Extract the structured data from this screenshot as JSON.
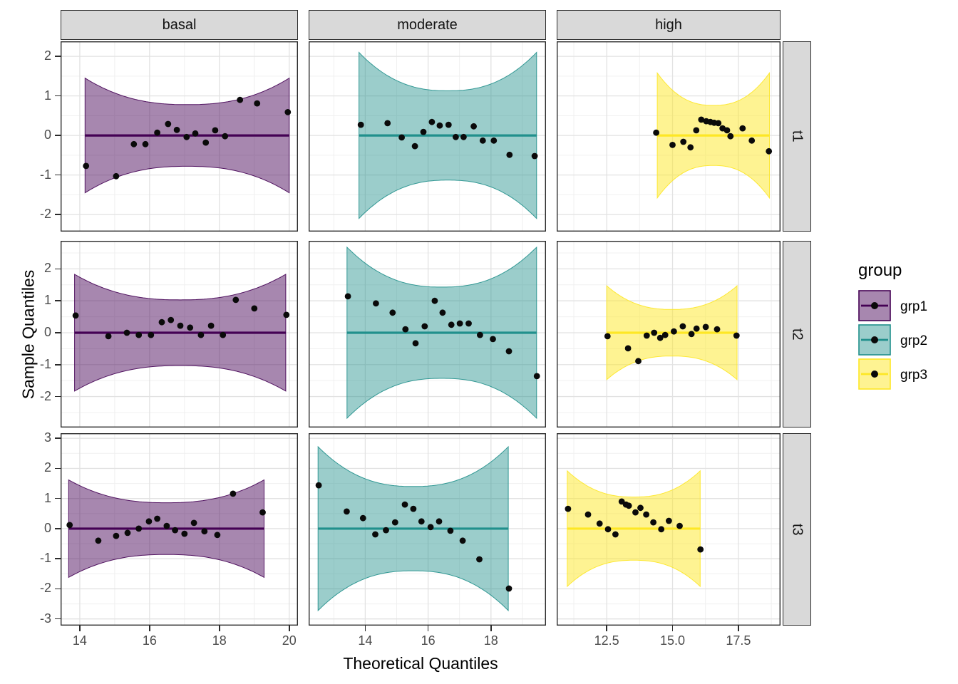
{
  "axis": {
    "x_title": "Theoretical Quantiles",
    "y_title": "Sample Quantiles"
  },
  "facets": {
    "col_labels": [
      "basal",
      "moderate",
      "high"
    ],
    "row_labels": [
      "t1",
      "t2",
      "t3"
    ]
  },
  "legend": {
    "title": "group",
    "entries": [
      {
        "label": "grp1",
        "color": "#440154",
        "fill_opacity": 0.47
      },
      {
        "label": "grp2",
        "color": "#21908C",
        "fill_opacity": 0.45
      },
      {
        "label": "grp3",
        "color": "#FDE725",
        "fill_opacity": 0.5
      }
    ]
  },
  "theme": {
    "strip_background": "#D9D9D9",
    "panel_border": "#2b2b2b",
    "grid_major": "#E2E2E2",
    "grid_minor": "#F0F0F0",
    "tick_label_color": "#4D4D4D",
    "point_color": "#0a0a0a",
    "background": "#ffffff"
  },
  "chart_data": {
    "type": "scatter",
    "subtype": "qq-plot-with-confidence-band",
    "title": "",
    "xlabel": "Theoretical Quantiles",
    "ylabel": "Sample Quantiles",
    "grid": true,
    "legend_position": "right",
    "x_scales": [
      {
        "facet": "basal",
        "domain": [
          13.45,
          20.25
        ],
        "ticks": [
          14,
          16,
          18,
          20
        ],
        "tick_labels": [
          "14",
          "16",
          "18",
          "20"
        ],
        "minor": [
          15,
          17,
          19
        ]
      },
      {
        "facet": "moderate",
        "domain": [
          12.2,
          19.75
        ],
        "ticks": [
          14,
          16,
          18
        ],
        "tick_labels": [
          "14",
          "16",
          "18"
        ],
        "minor": [
          13,
          15,
          17,
          19
        ]
      },
      {
        "facet": "high",
        "domain": [
          10.6,
          19.1
        ],
        "ticks": [
          12.5,
          15.0,
          17.5
        ],
        "tick_labels": [
          "12.5",
          "15.0",
          "17.5"
        ],
        "minor": [
          11.25,
          13.75,
          16.25,
          18.75
        ]
      }
    ],
    "y_scales": [
      {
        "facet": "t1",
        "domain": [
          -2.43,
          2.38
        ],
        "ticks": [
          -2,
          -1,
          0,
          1,
          2
        ],
        "tick_labels": [
          "-2",
          "-1",
          "0",
          "1",
          "2"
        ],
        "minor": [
          -1.5,
          -0.5,
          0.5,
          1.5
        ]
      },
      {
        "facet": "t2",
        "domain": [
          -2.97,
          2.88
        ],
        "ticks": [
          -2,
          -1,
          0,
          1,
          2
        ],
        "tick_labels": [
          "-2",
          "-1",
          "0",
          "1",
          "2"
        ],
        "minor": [
          -2.5,
          -1.5,
          -0.5,
          0.5,
          1.5,
          2.5
        ]
      },
      {
        "facet": "t3",
        "domain": [
          -3.22,
          3.17
        ],
        "ticks": [
          -3,
          -2,
          -1,
          0,
          1,
          2,
          3
        ],
        "tick_labels": [
          "-3",
          "-2",
          "-1",
          "0",
          "1",
          "2",
          "3"
        ],
        "minor": [
          -2.5,
          -1.5,
          -0.5,
          0.5,
          1.5,
          2.5
        ]
      }
    ],
    "panels": [
      {
        "row": "t1",
        "col": "basal",
        "group": "grp1",
        "ref_line_y": 0,
        "band": {
          "xmin": 14.15,
          "xmax": 20.0,
          "half_mid": 0.78,
          "half_end": 1.45
        },
        "points": [
          [
            14.18,
            -0.77
          ],
          [
            15.04,
            -1.03
          ],
          [
            15.55,
            -0.22
          ],
          [
            15.88,
            -0.22
          ],
          [
            16.22,
            0.07
          ],
          [
            16.53,
            0.29
          ],
          [
            16.78,
            0.14
          ],
          [
            17.06,
            -0.04
          ],
          [
            17.31,
            0.05
          ],
          [
            17.61,
            -0.18
          ],
          [
            17.88,
            0.13
          ],
          [
            18.16,
            -0.02
          ],
          [
            18.59,
            0.9
          ],
          [
            19.08,
            0.81
          ],
          [
            19.96,
            0.59
          ]
        ]
      },
      {
        "row": "t1",
        "col": "moderate",
        "group": "grp2",
        "ref_line_y": 0,
        "band": {
          "xmin": 13.8,
          "xmax": 19.45,
          "half_mid": 1.13,
          "half_end": 2.1
        },
        "points": [
          [
            13.86,
            0.27
          ],
          [
            14.71,
            0.31
          ],
          [
            15.16,
            -0.05
          ],
          [
            15.58,
            -0.27
          ],
          [
            15.85,
            0.09
          ],
          [
            16.12,
            0.34
          ],
          [
            16.37,
            0.25
          ],
          [
            16.65,
            0.27
          ],
          [
            16.88,
            -0.04
          ],
          [
            17.13,
            -0.04
          ],
          [
            17.45,
            0.23
          ],
          [
            17.74,
            -0.13
          ],
          [
            18.09,
            -0.13
          ],
          [
            18.59,
            -0.49
          ],
          [
            19.39,
            -0.52
          ]
        ]
      },
      {
        "row": "t1",
        "col": "high",
        "group": "grp3",
        "ref_line_y": 0,
        "band": {
          "xmin": 14.42,
          "xmax": 18.68,
          "half_mid": 0.76,
          "half_end": 1.58
        },
        "points": [
          [
            14.38,
            0.07
          ],
          [
            15.0,
            -0.24
          ],
          [
            15.41,
            -0.16
          ],
          [
            15.68,
            -0.3
          ],
          [
            15.9,
            0.13
          ],
          [
            16.09,
            0.4
          ],
          [
            16.28,
            0.36
          ],
          [
            16.44,
            0.34
          ],
          [
            16.58,
            0.32
          ],
          [
            16.74,
            0.31
          ],
          [
            16.9,
            0.18
          ],
          [
            17.07,
            0.13
          ],
          [
            17.2,
            -0.02
          ],
          [
            17.66,
            0.18
          ],
          [
            18.01,
            -0.13
          ],
          [
            18.66,
            -0.4
          ]
        ]
      },
      {
        "row": "t2",
        "col": "basal",
        "group": "grp1",
        "ref_line_y": 0,
        "band": {
          "xmin": 13.85,
          "xmax": 19.9,
          "half_mid": 1.03,
          "half_end": 1.83
        },
        "points": [
          [
            13.88,
            0.54
          ],
          [
            14.82,
            -0.11
          ],
          [
            15.35,
            0.0
          ],
          [
            15.69,
            -0.07
          ],
          [
            16.04,
            -0.07
          ],
          [
            16.35,
            0.33
          ],
          [
            16.61,
            0.4
          ],
          [
            16.88,
            0.22
          ],
          [
            17.16,
            0.16
          ],
          [
            17.47,
            -0.07
          ],
          [
            17.76,
            0.22
          ],
          [
            18.1,
            -0.07
          ],
          [
            18.47,
            1.03
          ],
          [
            19.0,
            0.76
          ],
          [
            19.92,
            0.56
          ]
        ]
      },
      {
        "row": "t2",
        "col": "moderate",
        "group": "grp2",
        "ref_line_y": 0,
        "band": {
          "xmin": 13.42,
          "xmax": 19.45,
          "half_mid": 1.43,
          "half_end": 2.68
        },
        "points": [
          [
            13.45,
            1.14
          ],
          [
            14.34,
            0.92
          ],
          [
            14.87,
            0.63
          ],
          [
            15.28,
            0.11
          ],
          [
            15.6,
            -0.33
          ],
          [
            15.89,
            0.2
          ],
          [
            16.21,
            1.0
          ],
          [
            16.46,
            0.63
          ],
          [
            16.74,
            0.25
          ],
          [
            17.01,
            0.29
          ],
          [
            17.29,
            0.29
          ],
          [
            17.65,
            -0.07
          ],
          [
            18.06,
            -0.2
          ],
          [
            18.57,
            -0.58
          ],
          [
            19.46,
            -1.36
          ]
        ]
      },
      {
        "row": "t2",
        "col": "high",
        "group": "grp3",
        "ref_line_y": 0,
        "band": {
          "xmin": 12.5,
          "xmax": 17.45,
          "half_mid": 0.73,
          "half_end": 1.47
        },
        "points": [
          [
            12.53,
            -0.11
          ],
          [
            13.31,
            -0.49
          ],
          [
            13.7,
            -0.89
          ],
          [
            14.02,
            -0.09
          ],
          [
            14.3,
            0.0
          ],
          [
            14.53,
            -0.16
          ],
          [
            14.72,
            -0.07
          ],
          [
            15.05,
            0.04
          ],
          [
            15.39,
            0.2
          ],
          [
            15.72,
            -0.04
          ],
          [
            15.91,
            0.13
          ],
          [
            16.26,
            0.18
          ],
          [
            16.69,
            0.11
          ],
          [
            17.43,
            -0.09
          ]
        ]
      },
      {
        "row": "t3",
        "col": "basal",
        "group": "grp1",
        "ref_line_y": 0,
        "band": {
          "xmin": 13.68,
          "xmax": 19.28,
          "half_mid": 0.86,
          "half_end": 1.62
        },
        "points": [
          [
            13.71,
            0.12
          ],
          [
            14.53,
            -0.4
          ],
          [
            15.04,
            -0.24
          ],
          [
            15.37,
            -0.14
          ],
          [
            15.69,
            0.0
          ],
          [
            15.98,
            0.24
          ],
          [
            16.22,
            0.33
          ],
          [
            16.49,
            0.09
          ],
          [
            16.73,
            -0.05
          ],
          [
            17.0,
            -0.17
          ],
          [
            17.27,
            0.19
          ],
          [
            17.57,
            -0.09
          ],
          [
            17.94,
            -0.21
          ],
          [
            18.39,
            1.16
          ],
          [
            19.24,
            0.54
          ]
        ]
      },
      {
        "row": "t3",
        "col": "moderate",
        "group": "grp2",
        "ref_line_y": 0,
        "band": {
          "xmin": 12.5,
          "xmax": 18.55,
          "half_mid": 1.4,
          "half_end": 2.72
        },
        "points": [
          [
            12.52,
            1.44
          ],
          [
            13.41,
            0.57
          ],
          [
            13.93,
            0.35
          ],
          [
            14.32,
            -0.19
          ],
          [
            14.66,
            -0.05
          ],
          [
            14.95,
            0.21
          ],
          [
            15.26,
            0.8
          ],
          [
            15.53,
            0.66
          ],
          [
            15.79,
            0.24
          ],
          [
            16.08,
            0.05
          ],
          [
            16.35,
            0.24
          ],
          [
            16.71,
            -0.07
          ],
          [
            17.1,
            -0.4
          ],
          [
            17.63,
            -1.02
          ],
          [
            18.57,
            -1.99
          ]
        ]
      },
      {
        "row": "t3",
        "col": "high",
        "group": "grp3",
        "ref_line_y": 0,
        "band": {
          "xmin": 11.0,
          "xmax": 16.05,
          "half_mid": 1.05,
          "half_end": 1.92
        },
        "points": [
          [
            11.03,
            0.66
          ],
          [
            11.79,
            0.47
          ],
          [
            12.23,
            0.17
          ],
          [
            12.55,
            -0.02
          ],
          [
            12.83,
            -0.19
          ],
          [
            13.07,
            0.9
          ],
          [
            13.23,
            0.8
          ],
          [
            13.34,
            0.76
          ],
          [
            13.59,
            0.54
          ],
          [
            13.78,
            0.69
          ],
          [
            14.0,
            0.47
          ],
          [
            14.27,
            0.21
          ],
          [
            14.57,
            -0.02
          ],
          [
            14.86,
            0.26
          ],
          [
            15.27,
            0.09
          ],
          [
            16.06,
            -0.69
          ]
        ]
      }
    ]
  }
}
